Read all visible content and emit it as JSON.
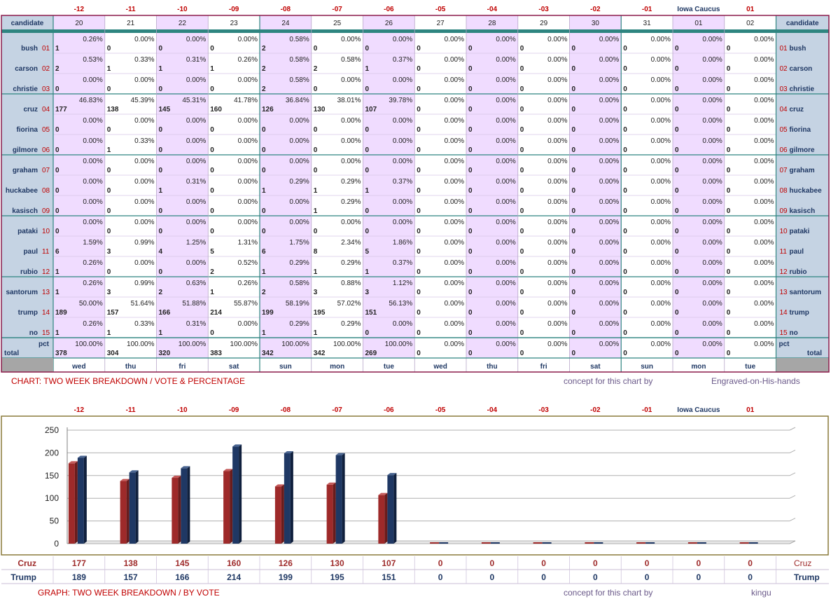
{
  "offsets": [
    "-12",
    "-11",
    "-10",
    "-09",
    "-08",
    "-07",
    "-06",
    "-05",
    "-04",
    "-03",
    "-02",
    "-01",
    "Iowa Caucus",
    "01"
  ],
  "days": [
    "20",
    "21",
    "22",
    "23",
    "24",
    "25",
    "26",
    "27",
    "28",
    "29",
    "30",
    "31",
    "01",
    "02"
  ],
  "weekdays": [
    "wed",
    "thu",
    "fri",
    "sat",
    "sun",
    "mon",
    "tue",
    "wed",
    "thu",
    "fri",
    "sat",
    "sun",
    "mon",
    "tue"
  ],
  "header_label": "candidate",
  "candidates": [
    {
      "name": "bush",
      "num": "01",
      "votes": [
        "1",
        "0",
        "0",
        "0",
        "2",
        "0",
        "0",
        "0",
        "0",
        "0",
        "0",
        "0",
        "0",
        "0"
      ],
      "pcts": [
        "0.26%",
        "0.00%",
        "0.00%",
        "0.00%",
        "0.58%",
        "0.00%",
        "0.00%",
        "0.00%",
        "0.00%",
        "0.00%",
        "0.00%",
        "0.00%",
        "0.00%",
        "0.00%"
      ]
    },
    {
      "name": "carson",
      "num": "02",
      "votes": [
        "2",
        "1",
        "1",
        "1",
        "2",
        "2",
        "1",
        "0",
        "0",
        "0",
        "0",
        "0",
        "0",
        "0"
      ],
      "pcts": [
        "0.53%",
        "0.33%",
        "0.31%",
        "0.26%",
        "0.58%",
        "0.58%",
        "0.37%",
        "0.00%",
        "0.00%",
        "0.00%",
        "0.00%",
        "0.00%",
        "0.00%",
        "0.00%"
      ]
    },
    {
      "name": "christie",
      "num": "03",
      "votes": [
        "0",
        "0",
        "0",
        "0",
        "2",
        "0",
        "0",
        "0",
        "0",
        "0",
        "0",
        "0",
        "0",
        "0"
      ],
      "pcts": [
        "0.00%",
        "0.00%",
        "0.00%",
        "0.00%",
        "0.58%",
        "0.00%",
        "0.00%",
        "0.00%",
        "0.00%",
        "0.00%",
        "0.00%",
        "0.00%",
        "0.00%",
        "0.00%"
      ]
    },
    {
      "name": "cruz",
      "num": "04",
      "votes": [
        "177",
        "138",
        "145",
        "160",
        "126",
        "130",
        "107",
        "0",
        "0",
        "0",
        "0",
        "0",
        "0",
        "0"
      ],
      "pcts": [
        "46.83%",
        "45.39%",
        "45.31%",
        "41.78%",
        "36.84%",
        "38.01%",
        "39.78%",
        "0.00%",
        "0.00%",
        "0.00%",
        "0.00%",
        "0.00%",
        "0.00%",
        "0.00%"
      ]
    },
    {
      "name": "fiorina",
      "num": "05",
      "votes": [
        "0",
        "0",
        "0",
        "0",
        "0",
        "0",
        "0",
        "0",
        "0",
        "0",
        "0",
        "0",
        "0",
        "0"
      ],
      "pcts": [
        "0.00%",
        "0.00%",
        "0.00%",
        "0.00%",
        "0.00%",
        "0.00%",
        "0.00%",
        "0.00%",
        "0.00%",
        "0.00%",
        "0.00%",
        "0.00%",
        "0.00%",
        "0.00%"
      ]
    },
    {
      "name": "gilmore",
      "num": "06",
      "votes": [
        "0",
        "1",
        "0",
        "0",
        "0",
        "0",
        "0",
        "0",
        "0",
        "0",
        "0",
        "0",
        "0",
        "0"
      ],
      "pcts": [
        "0.00%",
        "0.33%",
        "0.00%",
        "0.00%",
        "0.00%",
        "0.00%",
        "0.00%",
        "0.00%",
        "0.00%",
        "0.00%",
        "0.00%",
        "0.00%",
        "0.00%",
        "0.00%"
      ]
    },
    {
      "name": "graham",
      "num": "07",
      "votes": [
        "0",
        "0",
        "0",
        "0",
        "0",
        "0",
        "0",
        "0",
        "0",
        "0",
        "0",
        "0",
        "0",
        "0"
      ],
      "pcts": [
        "0.00%",
        "0.00%",
        "0.00%",
        "0.00%",
        "0.00%",
        "0.00%",
        "0.00%",
        "0.00%",
        "0.00%",
        "0.00%",
        "0.00%",
        "0.00%",
        "0.00%",
        "0.00%"
      ]
    },
    {
      "name": "huckabee",
      "num": "08",
      "votes": [
        "0",
        "0",
        "1",
        "0",
        "1",
        "1",
        "1",
        "0",
        "0",
        "0",
        "0",
        "0",
        "0",
        "0"
      ],
      "pcts": [
        "0.00%",
        "0.00%",
        "0.31%",
        "0.00%",
        "0.29%",
        "0.29%",
        "0.37%",
        "0.00%",
        "0.00%",
        "0.00%",
        "0.00%",
        "0.00%",
        "0.00%",
        "0.00%"
      ]
    },
    {
      "name": "kasisch",
      "num": "09",
      "votes": [
        "0",
        "0",
        "0",
        "0",
        "0",
        "1",
        "0",
        "0",
        "0",
        "0",
        "0",
        "0",
        "0",
        "0"
      ],
      "pcts": [
        "0.00%",
        "0.00%",
        "0.00%",
        "0.00%",
        "0.00%",
        "0.29%",
        "0.00%",
        "0.00%",
        "0.00%",
        "0.00%",
        "0.00%",
        "0.00%",
        "0.00%",
        "0.00%"
      ]
    },
    {
      "name": "pataki",
      "num": "10",
      "votes": [
        "0",
        "0",
        "0",
        "0",
        "0",
        "0",
        "0",
        "0",
        "0",
        "0",
        "0",
        "0",
        "0",
        "0"
      ],
      "pcts": [
        "0.00%",
        "0.00%",
        "0.00%",
        "0.00%",
        "0.00%",
        "0.00%",
        "0.00%",
        "0.00%",
        "0.00%",
        "0.00%",
        "0.00%",
        "0.00%",
        "0.00%",
        "0.00%"
      ]
    },
    {
      "name": "paul",
      "num": "11",
      "votes": [
        "6",
        "3",
        "4",
        "5",
        "6",
        "8",
        "5",
        "0",
        "0",
        "0",
        "0",
        "0",
        "0",
        "0"
      ],
      "pcts": [
        "1.59%",
        "0.99%",
        "1.25%",
        "1.31%",
        "1.75%",
        "2.34%",
        "1.86%",
        "0.00%",
        "0.00%",
        "0.00%",
        "0.00%",
        "0.00%",
        "0.00%",
        "0.00%"
      ]
    },
    {
      "name": "rubio",
      "num": "12",
      "votes": [
        "1",
        "0",
        "0",
        "2",
        "1",
        "1",
        "1",
        "0",
        "0",
        "0",
        "0",
        "0",
        "0",
        "0"
      ],
      "pcts": [
        "0.26%",
        "0.00%",
        "0.00%",
        "0.52%",
        "0.29%",
        "0.29%",
        "0.37%",
        "0.00%",
        "0.00%",
        "0.00%",
        "0.00%",
        "0.00%",
        "0.00%",
        "0.00%"
      ]
    },
    {
      "name": "santorum",
      "num": "13",
      "votes": [
        "1",
        "3",
        "2",
        "1",
        "2",
        "3",
        "3",
        "0",
        "0",
        "0",
        "0",
        "0",
        "0",
        "0"
      ],
      "pcts": [
        "0.26%",
        "0.99%",
        "0.63%",
        "0.26%",
        "0.58%",
        "0.88%",
        "1.12%",
        "0.00%",
        "0.00%",
        "0.00%",
        "0.00%",
        "0.00%",
        "0.00%",
        "0.00%"
      ]
    },
    {
      "name": "trump",
      "num": "14",
      "votes": [
        "189",
        "157",
        "166",
        "214",
        "199",
        "195",
        "151",
        "0",
        "0",
        "0",
        "0",
        "0",
        "0",
        "0"
      ],
      "pcts": [
        "50.00%",
        "51.64%",
        "51.88%",
        "55.87%",
        "58.19%",
        "57.02%",
        "56.13%",
        "0.00%",
        "0.00%",
        "0.00%",
        "0.00%",
        "0.00%",
        "0.00%",
        "0.00%"
      ]
    },
    {
      "name": "no",
      "num": "15",
      "votes": [
        "1",
        "1",
        "1",
        "0",
        "1",
        "1",
        "0",
        "0",
        "0",
        "0",
        "0",
        "0",
        "0",
        "0"
      ],
      "pcts": [
        "0.26%",
        "0.33%",
        "0.31%",
        "0.00%",
        "0.29%",
        "0.29%",
        "0.00%",
        "0.00%",
        "0.00%",
        "0.00%",
        "0.00%",
        "0.00%",
        "0.00%",
        "0.00%"
      ]
    }
  ],
  "totals": {
    "label_pct": "pct",
    "label_total": "total",
    "votes": [
      "378",
      "304",
      "320",
      "383",
      "342",
      "342",
      "269",
      "0",
      "0",
      "0",
      "0",
      "0",
      "0",
      "0"
    ],
    "pcts": [
      "100.00%",
      "100.00%",
      "100.00%",
      "100.00%",
      "100.00%",
      "100.00%",
      "100.00%",
      "0.00%",
      "0.00%",
      "0.00%",
      "0.00%",
      "0.00%",
      "0.00%",
      "0.00%"
    ]
  },
  "chart_caption": "CHART: TWO WEEK BREAKDOWN / VOTE & PERCENTAGE",
  "chart_credit_text": "concept for this chart by",
  "chart_credit_name": "Engraved-on-His-hands",
  "graph_caption": "GRAPH: TWO WEEK BREAKDOWN / BY VOTE",
  "graph_credit_text": "concept for this chart by",
  "graph_credit_name": "kingu",
  "colors": {
    "cruz": "#9e2a2a",
    "trump": "#1f3864",
    "teal": "#2e8580",
    "frame": "#8b1a4a",
    "lav": "#f0dcff",
    "blueside": "#c5d3e3",
    "gray": "#a6a6a6"
  },
  "chart_data": {
    "type": "bar",
    "categories": [
      "-12",
      "-11",
      "-10",
      "-09",
      "-08",
      "-07",
      "-06",
      "-05",
      "-04",
      "-03",
      "-02",
      "-01",
      "Iowa Caucus",
      "01"
    ],
    "series": [
      {
        "name": "Cruz",
        "values": [
          177,
          138,
          145,
          160,
          126,
          130,
          107,
          0,
          0,
          0,
          0,
          0,
          0,
          0
        ]
      },
      {
        "name": "Trump",
        "values": [
          189,
          157,
          166,
          214,
          199,
          195,
          151,
          0,
          0,
          0,
          0,
          0,
          0,
          0
        ]
      }
    ],
    "yticks": [
      "0",
      "50",
      "100",
      "150",
      "200",
      "250"
    ],
    "ylim": [
      0,
      250
    ],
    "grid": true,
    "legend": "none"
  }
}
